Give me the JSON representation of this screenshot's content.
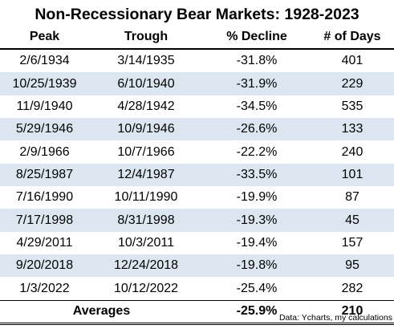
{
  "title": "Non-Recessionary Bear Markets: 1928-2023",
  "headers": [
    "Peak",
    "Trough",
    "% Decline",
    "# of Days"
  ],
  "rows": [
    [
      "2/6/1934",
      "3/14/1935",
      "-31.8%",
      "401"
    ],
    [
      "10/25/1939",
      "6/10/1940",
      "-31.9%",
      "229"
    ],
    [
      "11/9/1940",
      "4/28/1942",
      "-34.5%",
      "535"
    ],
    [
      "5/29/1946",
      "10/9/1946",
      "-26.6%",
      "133"
    ],
    [
      "2/9/1966",
      "10/7/1966",
      "-22.2%",
      "240"
    ],
    [
      "8/25/1987",
      "12/4/1987",
      "-33.5%",
      "101"
    ],
    [
      "7/16/1990",
      "10/11/1990",
      "-19.9%",
      "87"
    ],
    [
      "7/17/1998",
      "8/31/1998",
      "-19.3%",
      "45"
    ],
    [
      "4/29/2011",
      "10/3/2011",
      "-19.4%",
      "157"
    ],
    [
      "9/20/2018",
      "12/24/2018",
      "-19.8%",
      "95"
    ],
    [
      "1/3/2022",
      "10/12/2022",
      "-25.4%",
      "282"
    ]
  ],
  "averages": {
    "label": "Averages",
    "decline": "-25.9%",
    "days": "210"
  },
  "source": "Data: Ycharts, my calculations",
  "colors": {
    "shaded_row": "#dce6f1",
    "text": "#000000"
  },
  "chart_data": {
    "type": "table",
    "title": "Non-Recessionary Bear Markets: 1928-2023",
    "columns": [
      "Peak",
      "Trough",
      "% Decline",
      "# of Days"
    ],
    "peak": [
      "2/6/1934",
      "10/25/1939",
      "11/9/1940",
      "5/29/1946",
      "2/9/1966",
      "8/25/1987",
      "7/16/1990",
      "7/17/1998",
      "4/29/2011",
      "9/20/2018",
      "1/3/2022"
    ],
    "trough": [
      "3/14/1935",
      "6/10/1940",
      "4/28/1942",
      "10/9/1946",
      "10/7/1966",
      "12/4/1987",
      "10/11/1990",
      "8/31/1998",
      "10/3/2011",
      "12/24/2018",
      "10/12/2022"
    ],
    "decline_pct": [
      -31.8,
      -31.9,
      -34.5,
      -26.6,
      -22.2,
      -33.5,
      -19.9,
      -19.3,
      -19.4,
      -19.8,
      -25.4
    ],
    "days": [
      401,
      229,
      535,
      133,
      240,
      101,
      87,
      45,
      157,
      95,
      282
    ],
    "average_decline_pct": -25.9,
    "average_days": 210
  }
}
